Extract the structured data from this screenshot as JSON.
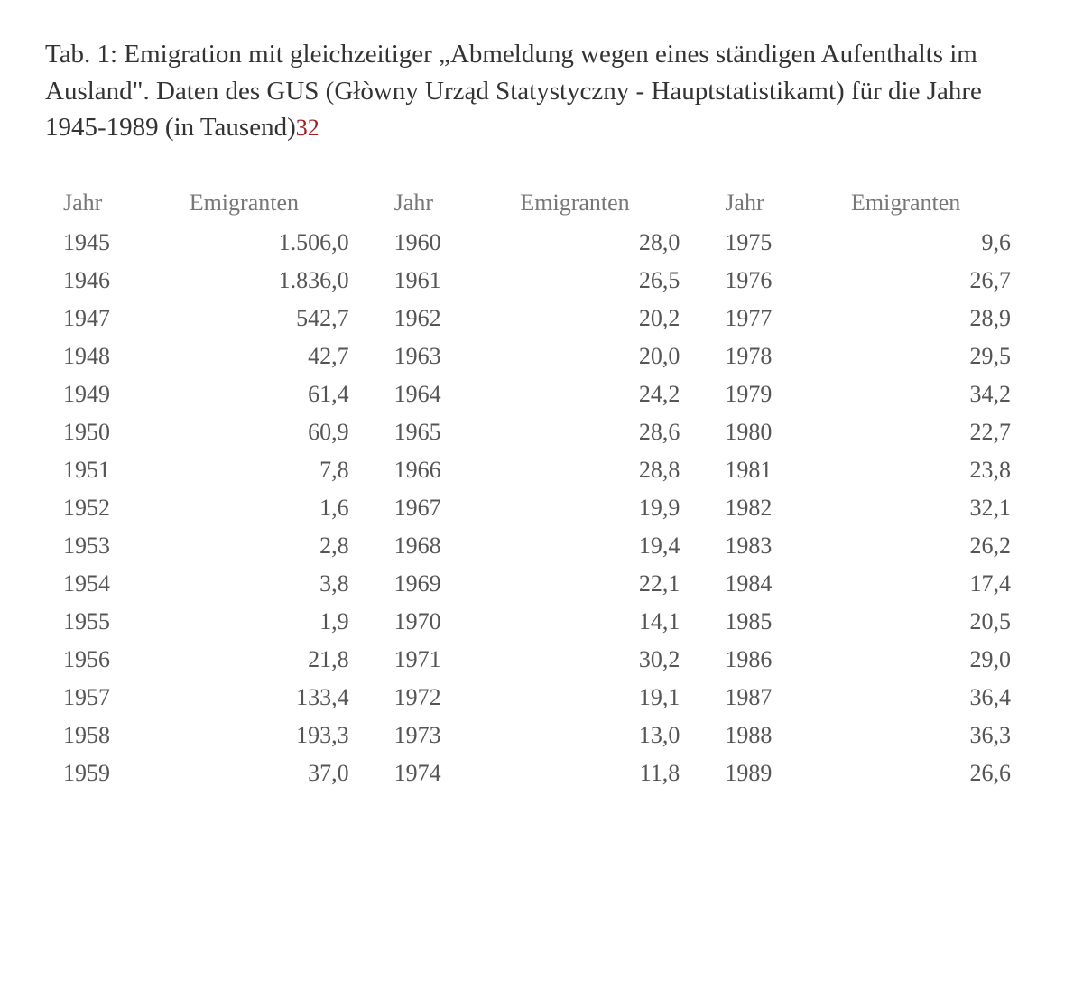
{
  "caption": {
    "text": "Tab. 1: Emigration mit gleichzeitiger „Abmeldung wegen eines ständigen Aufenthalts im Ausland\". Daten des GUS (Głòwny Urząd Statystyczny - Hauptstatistikamt) für die Jahre 1945-1989 (in Tausend)",
    "footnote_number": "32"
  },
  "table": {
    "type": "table",
    "header_year": "Jahr",
    "header_value": "Emigranten",
    "background_color": "#ffffff",
    "text_color": "#555555",
    "header_color": "#777777",
    "footnote_color": "#a02020",
    "font_family": "Georgia, serif",
    "body_fontsize": 26,
    "caption_fontsize": 29,
    "col_year_align": "left",
    "col_value_align": "right",
    "row_count": 15,
    "col_pairs": 3,
    "rows": [
      {
        "y1": "1945",
        "v1": "1.506,0",
        "y2": "1960",
        "v2": "28,0",
        "y3": "1975",
        "v3": "9,6"
      },
      {
        "y1": "1946",
        "v1": "1.836,0",
        "y2": "1961",
        "v2": "26,5",
        "y3": "1976",
        "v3": "26,7"
      },
      {
        "y1": "1947",
        "v1": "542,7",
        "y2": "1962",
        "v2": "20,2",
        "y3": "1977",
        "v3": "28,9"
      },
      {
        "y1": "1948",
        "v1": "42,7",
        "y2": "1963",
        "v2": "20,0",
        "y3": "1978",
        "v3": "29,5"
      },
      {
        "y1": "1949",
        "v1": "61,4",
        "y2": "1964",
        "v2": "24,2",
        "y3": "1979",
        "v3": "34,2"
      },
      {
        "y1": "1950",
        "v1": "60,9",
        "y2": "1965",
        "v2": "28,6",
        "y3": "1980",
        "v3": "22,7"
      },
      {
        "y1": "1951",
        "v1": "7,8",
        "y2": "1966",
        "v2": "28,8",
        "y3": "1981",
        "v3": "23,8"
      },
      {
        "y1": "1952",
        "v1": "1,6",
        "y2": "1967",
        "v2": "19,9",
        "y3": "1982",
        "v3": "32,1"
      },
      {
        "y1": "1953",
        "v1": "2,8",
        "y2": "1968",
        "v2": "19,4",
        "y3": "1983",
        "v3": "26,2"
      },
      {
        "y1": "1954",
        "v1": "3,8",
        "y2": "1969",
        "v2": "22,1",
        "y3": "1984",
        "v3": "17,4"
      },
      {
        "y1": "1955",
        "v1": "1,9",
        "y2": "1970",
        "v2": "14,1",
        "y3": "1985",
        "v3": "20,5"
      },
      {
        "y1": "1956",
        "v1": "21,8",
        "y2": "1971",
        "v2": "30,2",
        "y3": "1986",
        "v3": "29,0"
      },
      {
        "y1": "1957",
        "v1": "133,4",
        "y2": "1972",
        "v2": "19,1",
        "y3": "1987",
        "v3": "36,4"
      },
      {
        "y1": "1958",
        "v1": "193,3",
        "y2": "1973",
        "v2": "13,0",
        "y3": "1988",
        "v3": "36,3"
      },
      {
        "y1": "1959",
        "v1": "37,0",
        "y2": "1974",
        "v2": "11,8",
        "y3": "1989",
        "v3": "26,6"
      }
    ]
  }
}
